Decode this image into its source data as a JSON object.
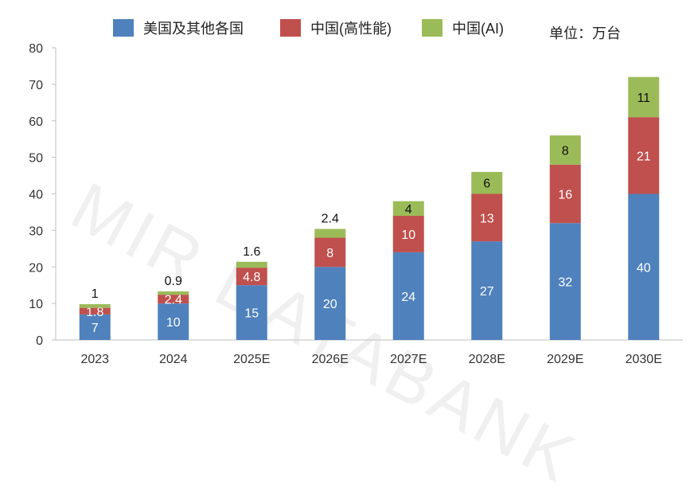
{
  "chart_data": {
    "type": "bar",
    "stacked": true,
    "categories": [
      "2023",
      "2024",
      "2025E",
      "2026E",
      "2027E",
      "2028E",
      "2029E",
      "2030E"
    ],
    "series": [
      {
        "name": "美国及其他各国",
        "color": "#4f81bd",
        "values": [
          7,
          10,
          15,
          20,
          24,
          27,
          32,
          40
        ],
        "labels": [
          "7",
          "10",
          "15",
          "20",
          "24",
          "27",
          "32",
          "40"
        ]
      },
      {
        "name": "中国(高性能)",
        "color": "#c0504d",
        "values": [
          1.8,
          2.4,
          4.8,
          8,
          10,
          13,
          16,
          21
        ],
        "labels": [
          "1.8",
          "2.4",
          "4.8",
          "8",
          "10",
          "13",
          "16",
          "21"
        ]
      },
      {
        "name": "中国(AI)",
        "color": "#9bbb59",
        "values": [
          1,
          0.9,
          1.6,
          2.4,
          4,
          6,
          8,
          11
        ],
        "labels": [
          "1",
          "0.9",
          "1.6",
          "2.4",
          "4",
          "6",
          "8",
          "11"
        ]
      }
    ],
    "ylim": [
      0,
      80
    ],
    "yticks": [
      "0",
      "10",
      "20",
      "30",
      "40",
      "50",
      "60",
      "70",
      "80"
    ],
    "unit": "单位：万台",
    "grid": false,
    "legend_position": "top",
    "watermark": "MIR DATABANK"
  }
}
